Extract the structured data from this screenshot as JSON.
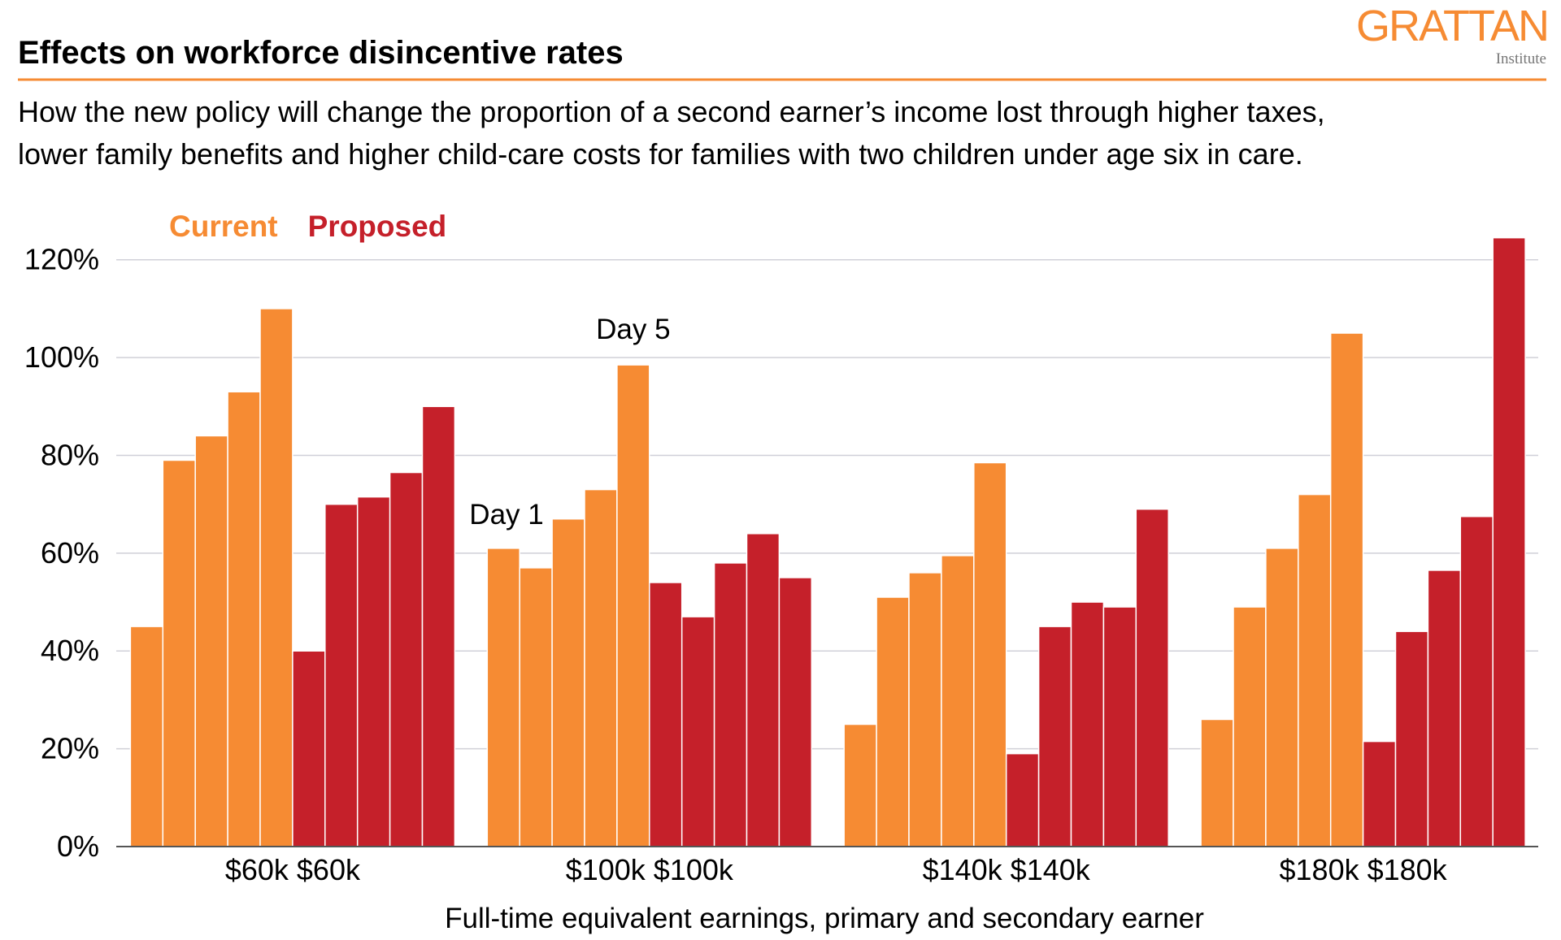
{
  "brand": {
    "name": "GRATTAN",
    "sub": "Institute"
  },
  "chart_data": {
    "type": "grouped-bar",
    "title": "Effects on workforce disincentive rates",
    "subtitle": [
      "How the new policy will change the proportion of a second earner’s income lost through higher taxes,",
      "lower family benefits and higher child-care costs for families with two children under age six in care."
    ],
    "x_label": "Full-time equivalent earnings, primary and secondary earner",
    "categories": [
      "$60k $60k",
      "$100k $100k",
      "$140k $140k",
      "$180k $180k"
    ],
    "annotations": [
      "Day 1",
      "Day 5"
    ],
    "series": [
      {
        "name": "Current",
        "color": "#F68B33",
        "values": [
          [
            45,
            79,
            84,
            93,
            110
          ],
          [
            61,
            57,
            67,
            73,
            98.5
          ],
          [
            25,
            51,
            56,
            59.5,
            78.5
          ],
          [
            26,
            49,
            61,
            72,
            105
          ]
        ]
      },
      {
        "name": "Proposed",
        "color": "#C5202A",
        "values": [
          [
            40,
            70,
            71.5,
            76.5,
            90
          ],
          [
            54,
            47,
            58,
            64,
            55
          ],
          [
            19,
            45,
            50,
            49,
            69
          ],
          [
            21.5,
            44,
            56.5,
            67.5,
            124.5
          ]
        ]
      }
    ],
    "ylim": [
      0,
      126
    ],
    "yticks": [
      {
        "value": 0,
        "label": "0%"
      },
      {
        "value": 20,
        "label": "20%"
      },
      {
        "value": 40,
        "label": "40%"
      },
      {
        "value": 60,
        "label": "60%"
      },
      {
        "value": 80,
        "label": "80%"
      },
      {
        "value": 100,
        "label": "100%"
      },
      {
        "value": 120,
        "label": "120%"
      }
    ],
    "grid": true
  }
}
